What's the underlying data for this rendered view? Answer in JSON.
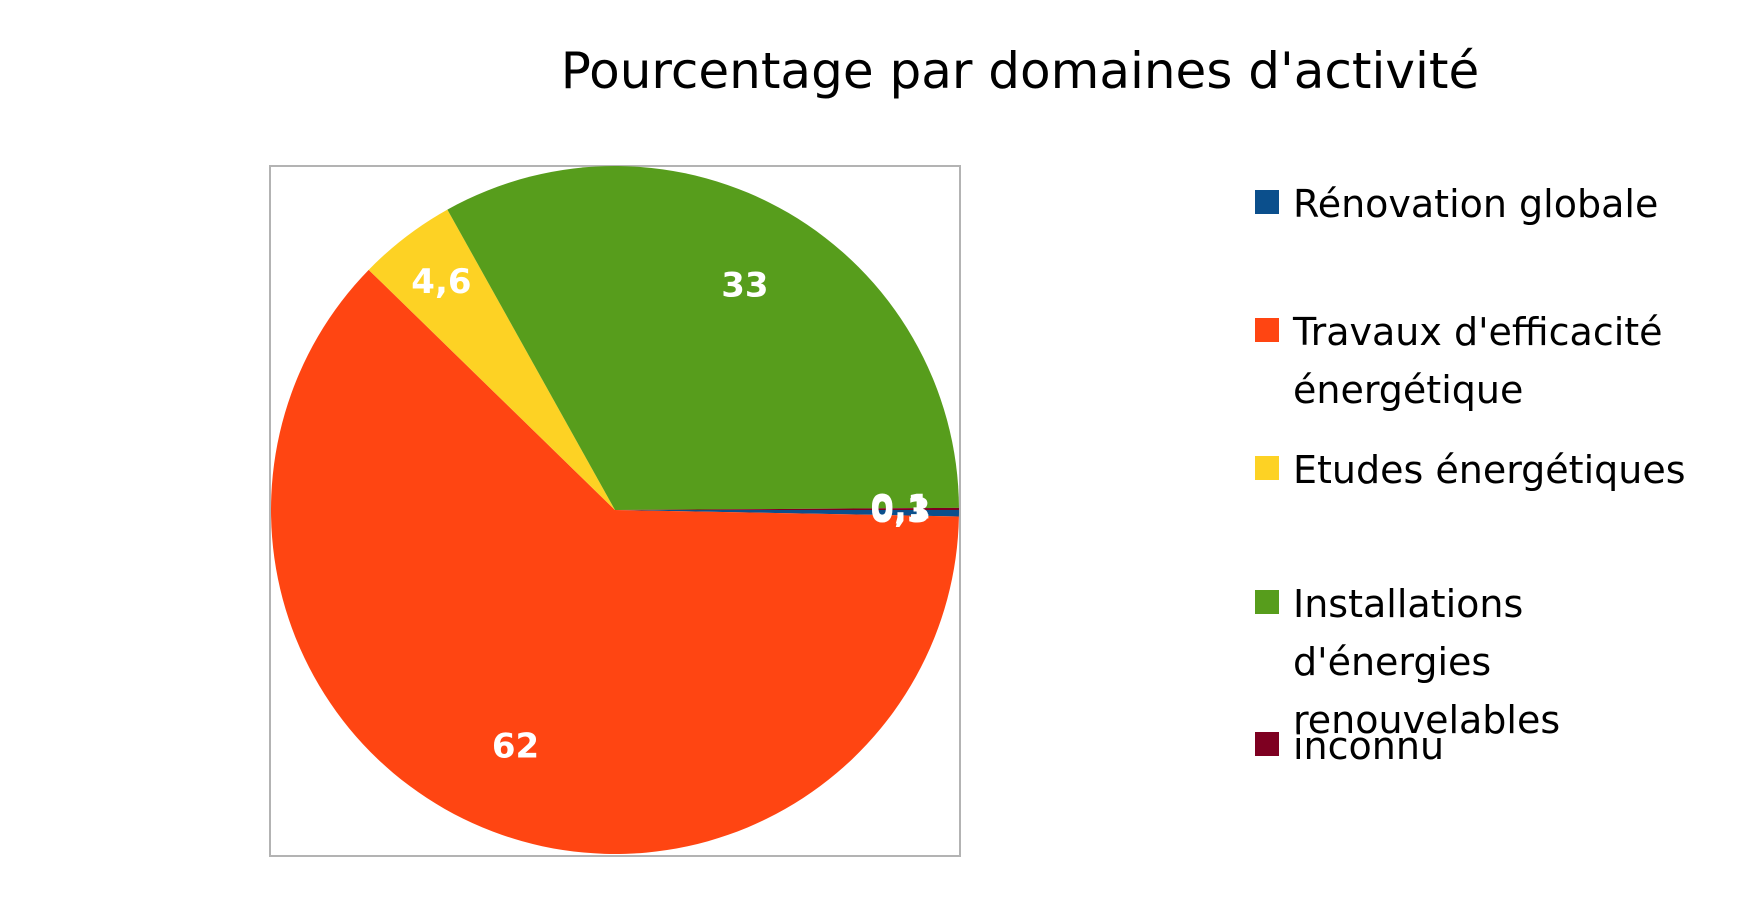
{
  "chart_data": {
    "type": "pie",
    "title": "Pourcentage par domaines d'activité",
    "categories": [
      "Rénovation globale",
      "Travaux d'efficacité énergétique",
      "Etudes énergétiques",
      "Installations d'énergies renouvelables",
      "inconnu"
    ],
    "values": [
      0.3,
      62,
      4.6,
      33,
      0.1
    ],
    "data_labels": [
      "0,3",
      "62",
      "4,6",
      "33",
      "0,1"
    ],
    "colors": [
      "#0B4F8C",
      "#FF4512",
      "#FDD224",
      "#579D1C",
      "#7E0021"
    ],
    "legend_position": "right",
    "start_angle": "3 o'clock, clockwise"
  }
}
